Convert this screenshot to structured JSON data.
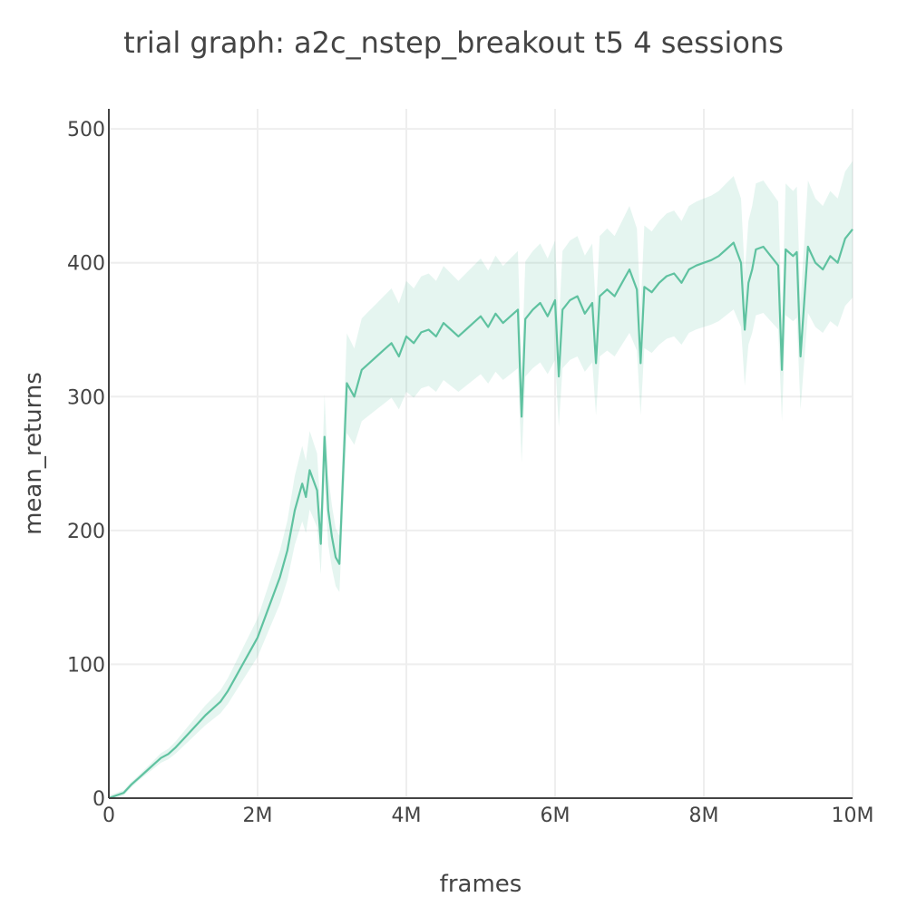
{
  "chart_data": {
    "type": "line",
    "title": "trial graph: a2c_nstep_breakout t5 4 sessions",
    "xlabel": "frames",
    "ylabel": "mean_returns",
    "xlim": [
      0,
      10000000
    ],
    "ylim": [
      0,
      515
    ],
    "x_ticks": [
      {
        "value": 0,
        "label": "0"
      },
      {
        "value": 2000000,
        "label": "2M"
      },
      {
        "value": 4000000,
        "label": "4M"
      },
      {
        "value": 6000000,
        "label": "6M"
      },
      {
        "value": 8000000,
        "label": "8M"
      },
      {
        "value": 10000000,
        "label": "10M"
      }
    ],
    "y_ticks": [
      {
        "value": 0,
        "label": "0"
      },
      {
        "value": 100,
        "label": "100"
      },
      {
        "value": 200,
        "label": "200"
      },
      {
        "value": 300,
        "label": "300"
      },
      {
        "value": 400,
        "label": "400"
      },
      {
        "value": 500,
        "label": "500"
      }
    ],
    "grid": true,
    "line_color": "#5fc2a0",
    "band_color": "#5fc2a0",
    "series": [
      {
        "x": [
          0,
          100000,
          200000,
          300000,
          400000,
          500000,
          600000,
          700000,
          800000,
          900000,
          1000000,
          1100000,
          1200000,
          1300000,
          1400000,
          1500000,
          1600000,
          1700000,
          1800000,
          1900000,
          2000000,
          2100000,
          2200000,
          2300000,
          2400000,
          2500000,
          2600000,
          2650000,
          2700000,
          2800000,
          2850000,
          2900000,
          2950000,
          3000000,
          3050000,
          3100000,
          3200000,
          3300000,
          3400000,
          3500000,
          3600000,
          3700000,
          3800000,
          3900000,
          4000000,
          4100000,
          4200000,
          4300000,
          4400000,
          4500000,
          4600000,
          4700000,
          4800000,
          4900000,
          5000000,
          5100000,
          5200000,
          5300000,
          5400000,
          5500000,
          5550000,
          5600000,
          5700000,
          5800000,
          5900000,
          6000000,
          6050000,
          6100000,
          6200000,
          6300000,
          6400000,
          6500000,
          6550000,
          6600000,
          6700000,
          6800000,
          6900000,
          7000000,
          7100000,
          7150000,
          7200000,
          7300000,
          7400000,
          7500000,
          7600000,
          7700000,
          7800000,
          7900000,
          8000000,
          8100000,
          8200000,
          8300000,
          8400000,
          8500000,
          8550000,
          8600000,
          8650000,
          8700000,
          8800000,
          8900000,
          9000000,
          9050000,
          9100000,
          9200000,
          9250000,
          9300000,
          9400000,
          9500000,
          9600000,
          9700000,
          9800000,
          9900000,
          10000000
        ],
        "y": [
          0,
          2,
          4,
          10,
          15,
          20,
          25,
          30,
          33,
          38,
          44,
          50,
          56,
          62,
          67,
          72,
          80,
          90,
          100,
          110,
          120,
          135,
          150,
          165,
          185,
          215,
          235,
          225,
          245,
          230,
          190,
          270,
          215,
          195,
          180,
          175,
          310,
          300,
          320,
          325,
          330,
          335,
          340,
          330,
          345,
          340,
          348,
          350,
          345,
          355,
          350,
          345,
          350,
          355,
          360,
          352,
          362,
          355,
          360,
          365,
          285,
          358,
          365,
          370,
          360,
          372,
          315,
          365,
          372,
          375,
          362,
          370,
          325,
          375,
          380,
          375,
          385,
          395,
          380,
          325,
          382,
          378,
          385,
          390,
          392,
          385,
          395,
          398,
          400,
          402,
          405,
          410,
          415,
          400,
          350,
          385,
          395,
          410,
          412,
          405,
          398,
          320,
          410,
          405,
          408,
          330,
          412,
          400,
          395,
          405,
          400,
          418,
          425
        ]
      }
    ]
  }
}
